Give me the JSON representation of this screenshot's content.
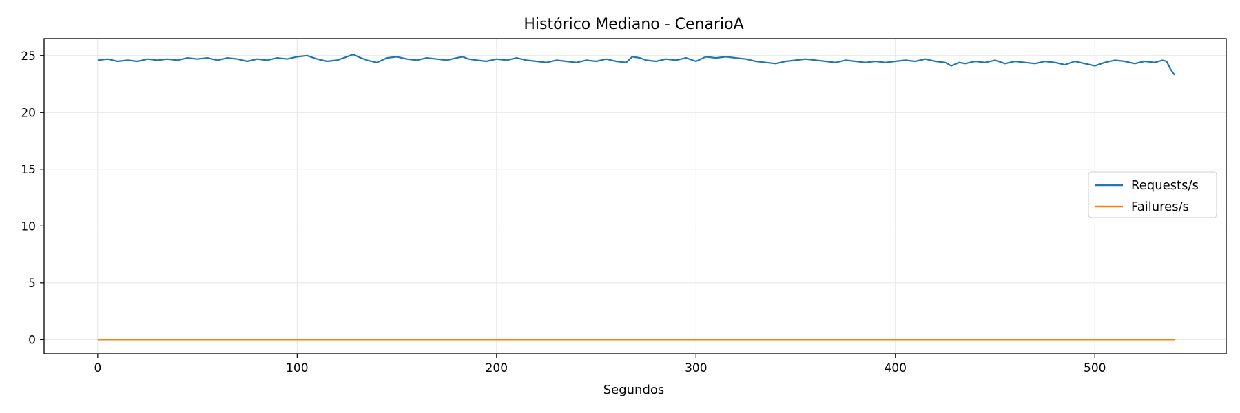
{
  "chart_data": {
    "type": "line",
    "title": "Histórico Mediano - CenarioA",
    "xlabel": "Segundos",
    "ylabel": "",
    "xlim": [
      -26.9,
      565.9
    ],
    "ylim": [
      -1.25,
      26.5
    ],
    "xticks": [
      0,
      100,
      200,
      300,
      400,
      500
    ],
    "yticks": [
      0,
      5,
      10,
      15,
      20,
      25
    ],
    "xtick_labels": [
      "0",
      "100",
      "200",
      "300",
      "400",
      "500"
    ],
    "ytick_labels": [
      "0",
      "5",
      "10",
      "15",
      "20",
      "25"
    ],
    "grid": true,
    "legend_position": "center right",
    "series": [
      {
        "name": "Requests/s",
        "color": "#1f77b4",
        "x": [
          0,
          5,
          10,
          15,
          20,
          25,
          30,
          35,
          40,
          45,
          50,
          55,
          60,
          65,
          70,
          75,
          80,
          85,
          90,
          95,
          100,
          105,
          110,
          115,
          120,
          125,
          128,
          132,
          135,
          140,
          145,
          150,
          155,
          160,
          165,
          170,
          175,
          180,
          183,
          186,
          190,
          195,
          200,
          205,
          210,
          215,
          220,
          225,
          230,
          235,
          240,
          245,
          250,
          255,
          260,
          265,
          268,
          272,
          275,
          280,
          285,
          290,
          295,
          300,
          305,
          310,
          315,
          320,
          325,
          330,
          335,
          340,
          345,
          350,
          355,
          360,
          365,
          370,
          375,
          380,
          385,
          390,
          395,
          400,
          405,
          410,
          415,
          420,
          425,
          428,
          432,
          435,
          440,
          445,
          450,
          455,
          460,
          465,
          470,
          475,
          480,
          485,
          490,
          495,
          500,
          505,
          510,
          515,
          520,
          525,
          530,
          534,
          536,
          538,
          540
        ],
        "y": [
          24.6,
          24.7,
          24.5,
          24.6,
          24.5,
          24.7,
          24.6,
          24.7,
          24.6,
          24.8,
          24.7,
          24.8,
          24.6,
          24.8,
          24.7,
          24.5,
          24.7,
          24.6,
          24.8,
          24.7,
          24.9,
          25.0,
          24.7,
          24.5,
          24.6,
          24.9,
          25.1,
          24.8,
          24.6,
          24.4,
          24.8,
          24.9,
          24.7,
          24.6,
          24.8,
          24.7,
          24.6,
          24.8,
          24.9,
          24.7,
          24.6,
          24.5,
          24.7,
          24.6,
          24.8,
          24.6,
          24.5,
          24.4,
          24.6,
          24.5,
          24.4,
          24.6,
          24.5,
          24.7,
          24.5,
          24.4,
          24.9,
          24.8,
          24.6,
          24.5,
          24.7,
          24.6,
          24.8,
          24.5,
          24.9,
          24.8,
          24.9,
          24.8,
          24.7,
          24.5,
          24.4,
          24.3,
          24.5,
          24.6,
          24.7,
          24.6,
          24.5,
          24.4,
          24.6,
          24.5,
          24.4,
          24.5,
          24.4,
          24.5,
          24.6,
          24.5,
          24.7,
          24.5,
          24.4,
          24.1,
          24.4,
          24.3,
          24.5,
          24.4,
          24.6,
          24.3,
          24.5,
          24.4,
          24.3,
          24.5,
          24.4,
          24.2,
          24.5,
          24.3,
          24.1,
          24.4,
          24.6,
          24.5,
          24.3,
          24.5,
          24.4,
          24.6,
          24.5,
          23.8,
          23.3
        ]
      },
      {
        "name": "Failures/s",
        "color": "#ff7f0e",
        "x": [
          0,
          540
        ],
        "y": [
          0,
          0
        ]
      }
    ]
  }
}
